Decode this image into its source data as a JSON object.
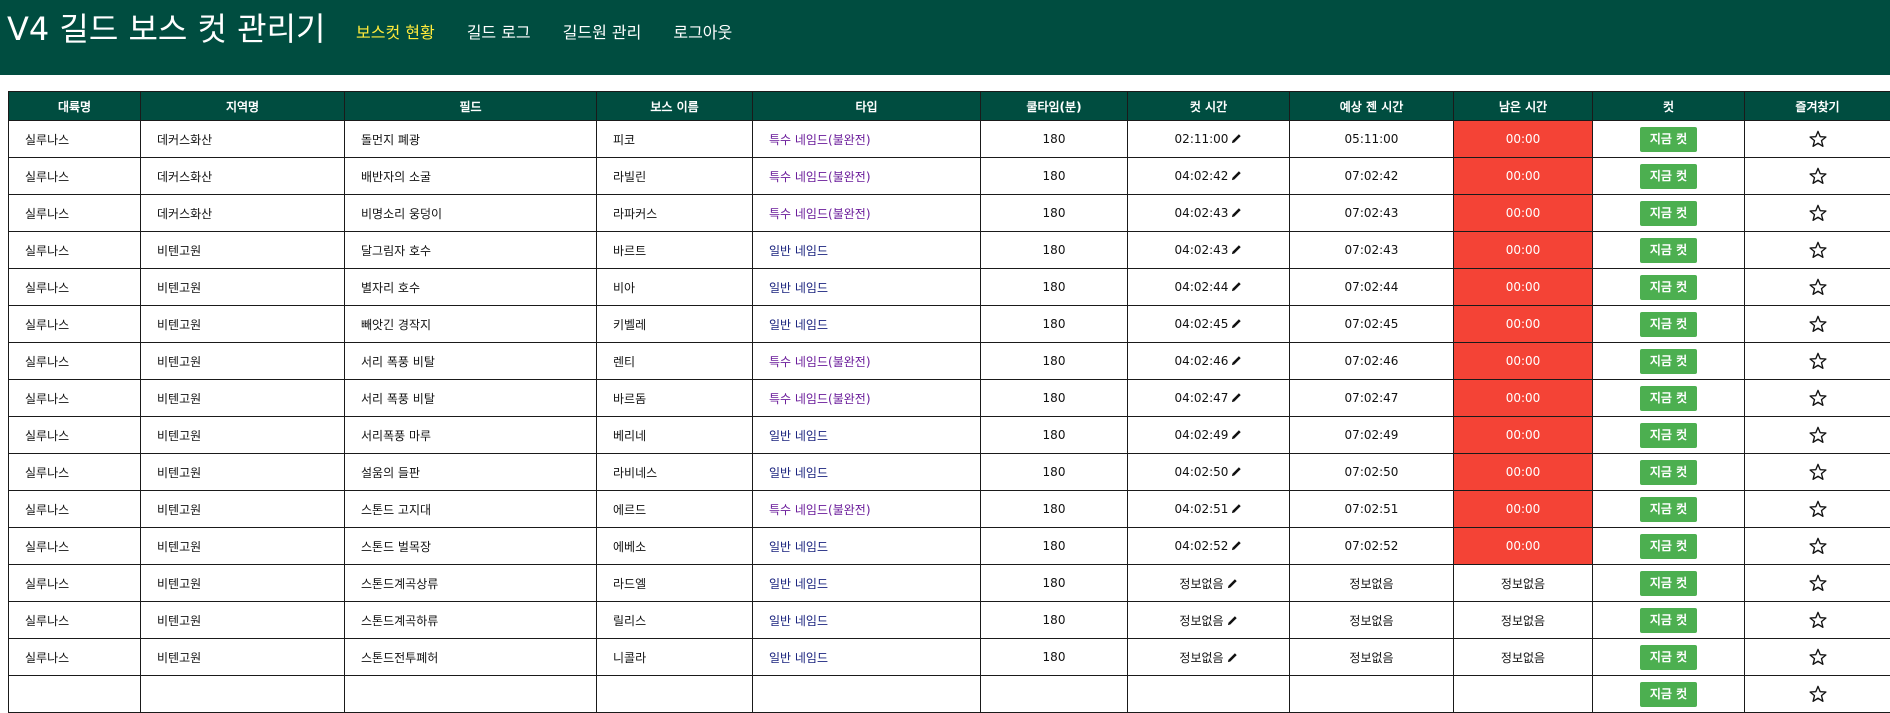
{
  "app": {
    "title": "V4 길드 보스 컷 관리기"
  },
  "nav": [
    {
      "label": "보스컷 현황",
      "active": true
    },
    {
      "label": "길드 로그",
      "active": false
    },
    {
      "label": "길드원 관리",
      "active": false
    },
    {
      "label": "로그아웃",
      "active": false
    }
  ],
  "table": {
    "columns": [
      "대륙명",
      "지역명",
      "필드",
      "보스 이름",
      "타입",
      "쿨타임(분)",
      "컷 시간",
      "예상 젠 시간",
      "남은 시간",
      "컷",
      "즐겨찾기"
    ],
    "cut_button_label": "지금 컷",
    "rows": [
      {
        "continent": "실루나스",
        "region": "데커스화산",
        "field": "돌먼지 폐광",
        "boss": "피코",
        "type": "특수 네임드(불완전)",
        "type_kind": "special",
        "cooldown": "180",
        "cut_time": "02:11:00",
        "spawn_time": "05:11:00",
        "remaining": "00:00",
        "expired": true
      },
      {
        "continent": "실루나스",
        "region": "데커스화산",
        "field": "배반자의 소굴",
        "boss": "라빌린",
        "type": "특수 네임드(불완전)",
        "type_kind": "special",
        "cooldown": "180",
        "cut_time": "04:02:42",
        "spawn_time": "07:02:42",
        "remaining": "00:00",
        "expired": true
      },
      {
        "continent": "실루나스",
        "region": "데커스화산",
        "field": "비명소리 웅덩이",
        "boss": "라파커스",
        "type": "특수 네임드(불완전)",
        "type_kind": "special",
        "cooldown": "180",
        "cut_time": "04:02:43",
        "spawn_time": "07:02:43",
        "remaining": "00:00",
        "expired": true
      },
      {
        "continent": "실루나스",
        "region": "비텐고원",
        "field": "달그림자 호수",
        "boss": "바르트",
        "type": "일반 네임드",
        "type_kind": "normal",
        "cooldown": "180",
        "cut_time": "04:02:43",
        "spawn_time": "07:02:43",
        "remaining": "00:00",
        "expired": true
      },
      {
        "continent": "실루나스",
        "region": "비텐고원",
        "field": "별자리 호수",
        "boss": "비아",
        "type": "일반 네임드",
        "type_kind": "normal",
        "cooldown": "180",
        "cut_time": "04:02:44",
        "spawn_time": "07:02:44",
        "remaining": "00:00",
        "expired": true
      },
      {
        "continent": "실루나스",
        "region": "비텐고원",
        "field": "빼앗긴 경작지",
        "boss": "키벨레",
        "type": "일반 네임드",
        "type_kind": "normal",
        "cooldown": "180",
        "cut_time": "04:02:45",
        "spawn_time": "07:02:45",
        "remaining": "00:00",
        "expired": true
      },
      {
        "continent": "실루나스",
        "region": "비텐고원",
        "field": "서리 폭풍 비탈",
        "boss": "렌티",
        "type": "특수 네임드(불완전)",
        "type_kind": "special",
        "cooldown": "180",
        "cut_time": "04:02:46",
        "spawn_time": "07:02:46",
        "remaining": "00:00",
        "expired": true
      },
      {
        "continent": "실루나스",
        "region": "비텐고원",
        "field": "서리 폭풍 비탈",
        "boss": "바르돔",
        "type": "특수 네임드(불완전)",
        "type_kind": "special",
        "cooldown": "180",
        "cut_time": "04:02:47",
        "spawn_time": "07:02:47",
        "remaining": "00:00",
        "expired": true
      },
      {
        "continent": "실루나스",
        "region": "비텐고원",
        "field": "서리폭풍 마루",
        "boss": "베리네",
        "type": "일반 네임드",
        "type_kind": "normal",
        "cooldown": "180",
        "cut_time": "04:02:49",
        "spawn_time": "07:02:49",
        "remaining": "00:00",
        "expired": true
      },
      {
        "continent": "실루나스",
        "region": "비텐고원",
        "field": "설움의 들판",
        "boss": "라비네스",
        "type": "일반 네임드",
        "type_kind": "normal",
        "cooldown": "180",
        "cut_time": "04:02:50",
        "spawn_time": "07:02:50",
        "remaining": "00:00",
        "expired": true
      },
      {
        "continent": "실루나스",
        "region": "비텐고원",
        "field": "스톤드 고지대",
        "boss": "에르드",
        "type": "특수 네임드(불완전)",
        "type_kind": "special",
        "cooldown": "180",
        "cut_time": "04:02:51",
        "spawn_time": "07:02:51",
        "remaining": "00:00",
        "expired": true
      },
      {
        "continent": "실루나스",
        "region": "비텐고원",
        "field": "스톤드 벌목장",
        "boss": "에베소",
        "type": "일반 네임드",
        "type_kind": "normal",
        "cooldown": "180",
        "cut_time": "04:02:52",
        "spawn_time": "07:02:52",
        "remaining": "00:00",
        "expired": true
      },
      {
        "continent": "실루나스",
        "region": "비텐고원",
        "field": "스톤드계곡상류",
        "boss": "라드엘",
        "type": "일반 네임드",
        "type_kind": "normal",
        "cooldown": "180",
        "cut_time": "정보없음",
        "spawn_time": "정보없음",
        "remaining": "정보없음",
        "expired": false
      },
      {
        "continent": "실루나스",
        "region": "비텐고원",
        "field": "스톤드계곡하류",
        "boss": "릴리스",
        "type": "일반 네임드",
        "type_kind": "normal",
        "cooldown": "180",
        "cut_time": "정보없음",
        "spawn_time": "정보없음",
        "remaining": "정보없음",
        "expired": false
      },
      {
        "continent": "실루나스",
        "region": "비텐고원",
        "field": "스톤드전투폐허",
        "boss": "니콜라",
        "type": "일반 네임드",
        "type_kind": "normal",
        "cooldown": "180",
        "cut_time": "정보없음",
        "spawn_time": "정보없음",
        "remaining": "정보없음",
        "expired": false
      },
      {
        "continent": "",
        "region": "",
        "field": "",
        "boss": "",
        "type": "",
        "type_kind": "normal",
        "cooldown": "",
        "cut_time": "",
        "spawn_time": "",
        "remaining": "",
        "expired": false
      }
    ]
  },
  "colors": {
    "header_bg": "#004d40",
    "nav_active": "#ffeb3b",
    "expired_bg": "#f44336",
    "cut_button": "#4caf50",
    "type_special": "#6a1b9a",
    "type_normal": "#1a237e"
  },
  "icons": {
    "edit": "pencil-icon",
    "favorite": "star-outline-icon"
  }
}
